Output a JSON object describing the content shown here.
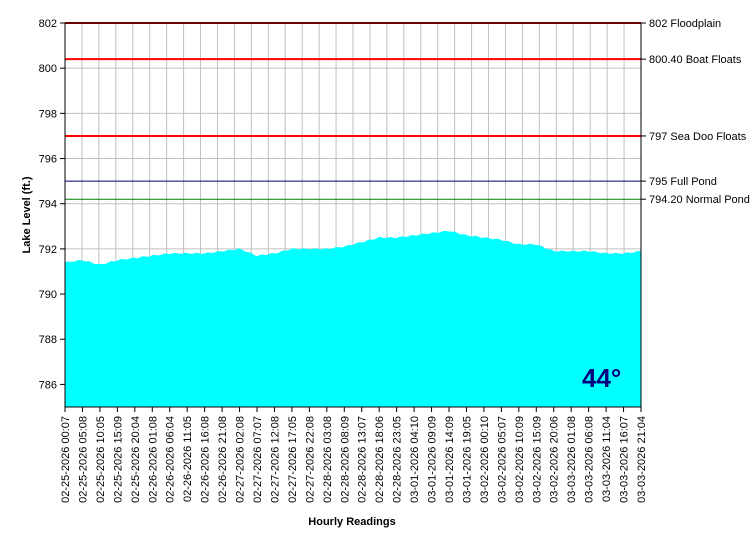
{
  "chart_data": {
    "type": "area",
    "title": "",
    "xlabel": "Hourly Readings",
    "ylabel": "Lake Level (ft.)",
    "ylim": [
      785,
      802
    ],
    "y_ticks": [
      786,
      788,
      790,
      792,
      794,
      796,
      798,
      800,
      802
    ],
    "x_tick_labels": [
      "02-25-2026 00:07",
      "02-25-2026 05:08",
      "02-25-2026 10:05",
      "02-25-2026 15:09",
      "02-25-2026 20:04",
      "02-26-2026 01:08",
      "02-26-2026 06:04",
      "02-26-2026 11:05",
      "02-26-2026 16:08",
      "02-26-2026 21:08",
      "02-27-2026 02:08",
      "02-27-2026 07:07",
      "02-27-2026 12:08",
      "02-27-2026 17:05",
      "02-27-2026 22:08",
      "02-28-2026 03:08",
      "02-28-2026 08:09",
      "02-28-2026 13:07",
      "02-28-2026 18:06",
      "02-28-2026 23:05",
      "03-01-2026 04:10",
      "03-01-2026 09:09",
      "03-01-2026 14:09",
      "03-01-2026 19:05",
      "03-02-2026 00:10",
      "03-02-2026 05:07",
      "03-02-2026 10:09",
      "03-02-2026 15:09",
      "03-02-2026 20:06",
      "03-03-2026 01:08",
      "03-03-2026 06:08",
      "03-03-2026 11:04",
      "03-03-2026 16:07",
      "03-03-2026 21:04"
    ],
    "series": [
      {
        "color": "#00ffff",
        "values": [
          791.4,
          791.5,
          791.3,
          791.5,
          791.6,
          791.7,
          791.8,
          791.8,
          791.8,
          791.9,
          792.0,
          791.7,
          791.8,
          792.0,
          792.0,
          792.0,
          792.1,
          792.3,
          792.5,
          792.5,
          792.6,
          792.7,
          792.8,
          792.6,
          792.5,
          792.4,
          792.2,
          792.2,
          791.9,
          791.9,
          791.9,
          791.8,
          791.8,
          791.9
        ]
      }
    ],
    "reference_lines": [
      {
        "value": 802,
        "label": "802 Floodplain",
        "color": "#cc0000"
      },
      {
        "value": 800.4,
        "label": "800.40 Boat Floats",
        "color": "#ff0000"
      },
      {
        "value": 797,
        "label": "797 Sea Doo Floats",
        "color": "#ff0000"
      },
      {
        "value": 795,
        "label": "795 Full Pond",
        "color": "#00007f"
      },
      {
        "value": 794.2,
        "label": "794.20 Normal Pond",
        "color": "#008000"
      }
    ],
    "grid": true
  },
  "overlay": {
    "temperature": "44°"
  }
}
